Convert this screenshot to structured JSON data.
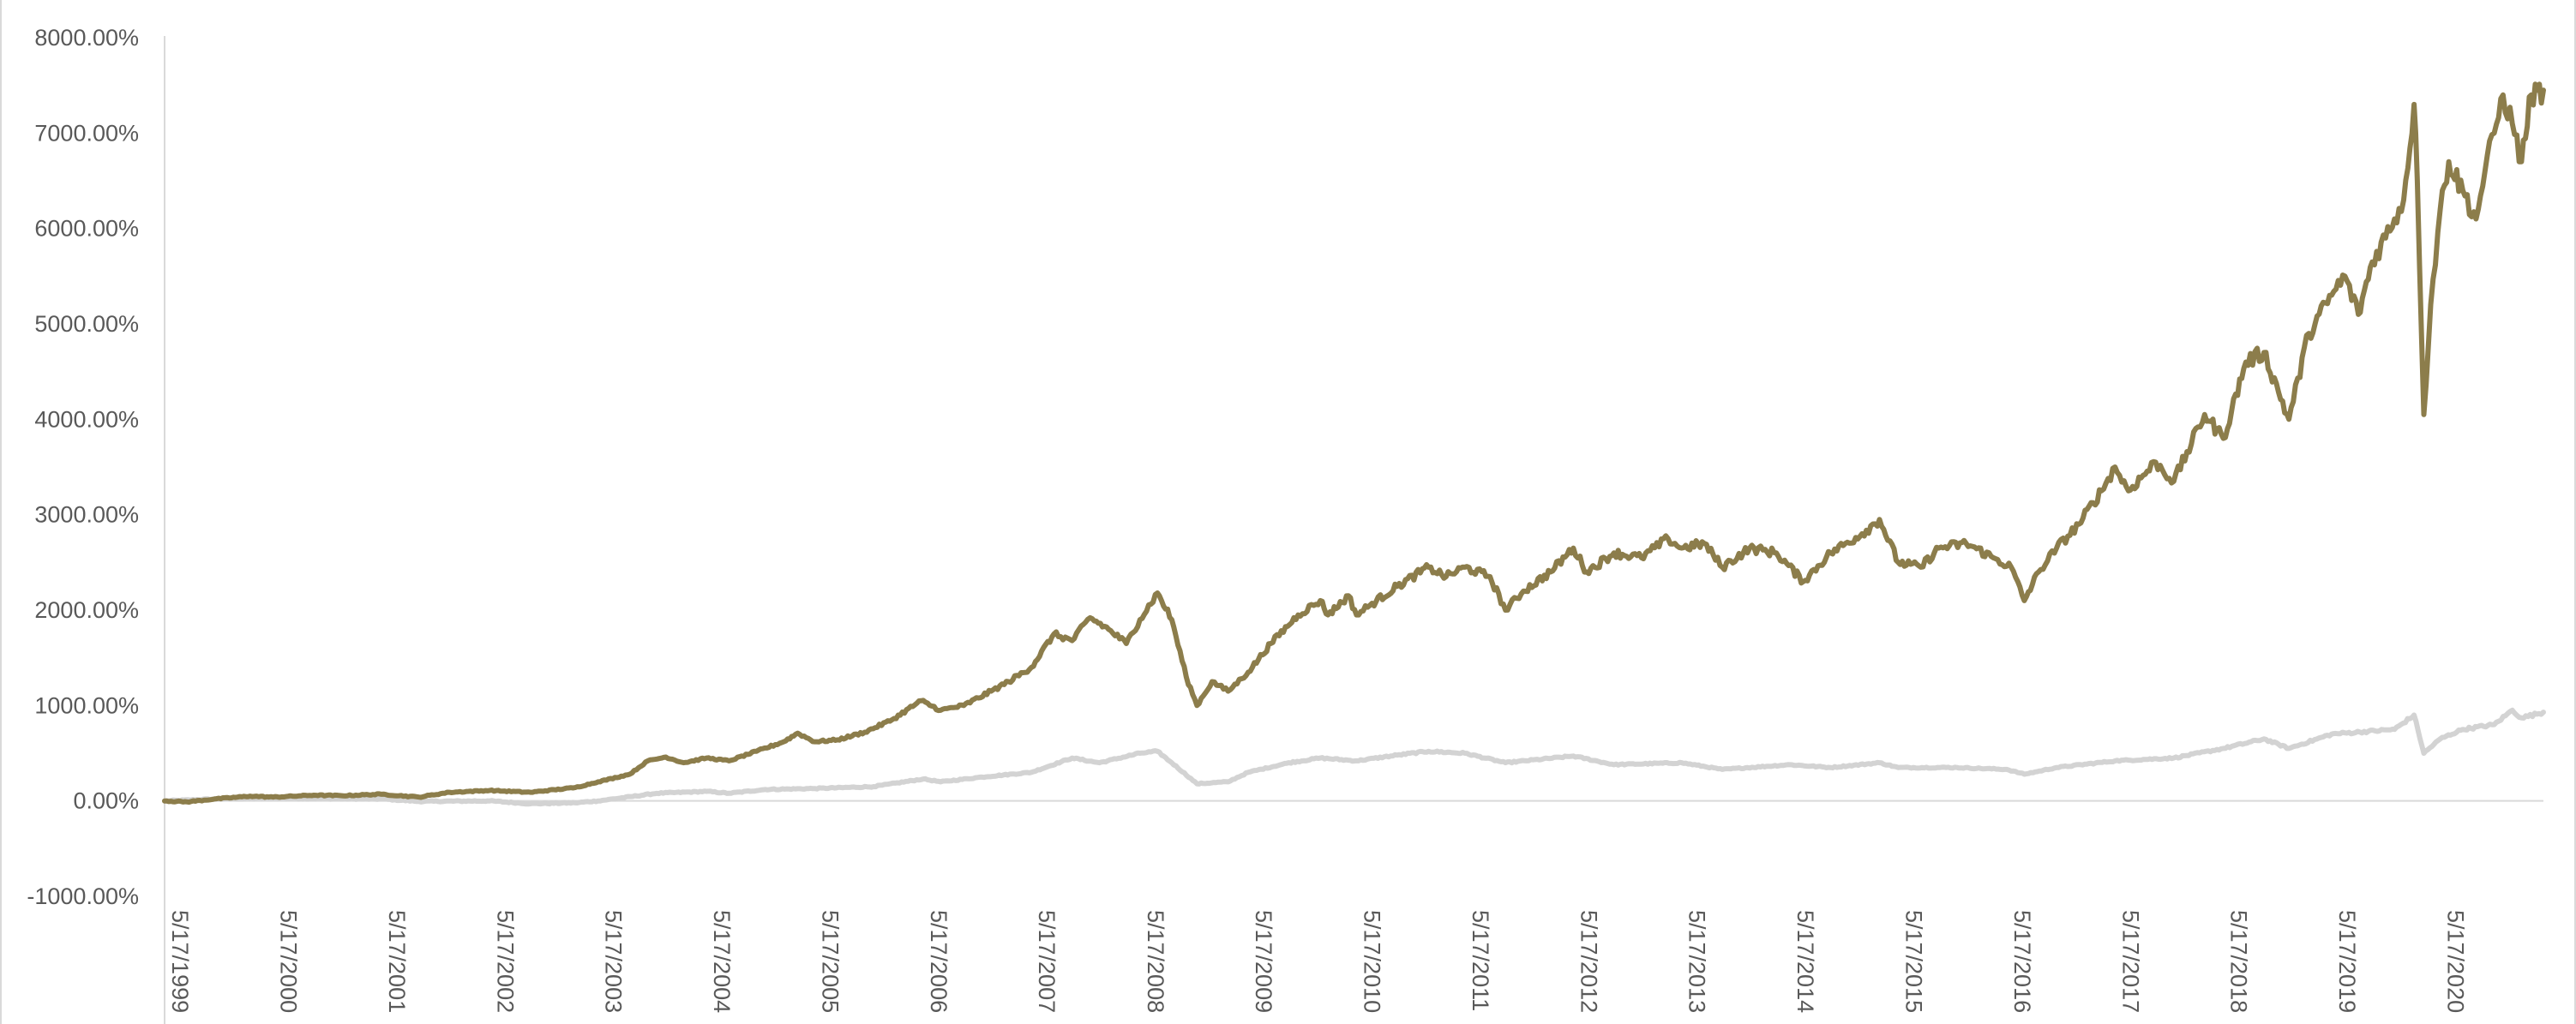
{
  "chart_data": {
    "type": "line",
    "title": "",
    "xlabel": "",
    "ylabel": "",
    "y_ticks": [
      "-1000.00%",
      "0.00%",
      "1000.00%",
      "2000.00%",
      "3000.00%",
      "4000.00%",
      "5000.00%",
      "6000.00%",
      "7000.00%",
      "8000.00%"
    ],
    "x_ticks": [
      "5/17/1999",
      "5/17/2000",
      "5/17/2001",
      "5/17/2002",
      "5/17/2003",
      "5/17/2004",
      "5/17/2005",
      "5/17/2006",
      "5/17/2007",
      "5/17/2008",
      "5/17/2009",
      "5/17/2010",
      "5/17/2011",
      "5/17/2012",
      "5/17/2013",
      "5/17/2014",
      "5/17/2015",
      "5/17/2016",
      "5/17/2017",
      "5/17/2018",
      "5/17/2019",
      "5/17/2020"
    ],
    "x_range": [
      "1999-05-17",
      "2021-04-30"
    ],
    "ylim": [
      -1000,
      8000
    ],
    "y_unit": "%",
    "grid": false,
    "legend": "none",
    "series": [
      {
        "color": "#8c7d4b",
        "points": [
          [
            "1999-05-17",
            0
          ],
          [
            "1999-08-01",
            -10
          ],
          [
            "1999-11-01",
            20
          ],
          [
            "2000-03-01",
            50
          ],
          [
            "2000-05-17",
            40
          ],
          [
            "2000-10-01",
            60
          ],
          [
            "2001-01-01",
            55
          ],
          [
            "2001-05-17",
            70
          ],
          [
            "2001-09-20",
            40
          ],
          [
            "2002-01-01",
            90
          ],
          [
            "2002-05-17",
            110
          ],
          [
            "2002-10-01",
            90
          ],
          [
            "2003-03-01",
            140
          ],
          [
            "2003-05-17",
            200
          ],
          [
            "2003-09-01",
            280
          ],
          [
            "2003-11-01",
            420
          ],
          [
            "2004-01-01",
            460
          ],
          [
            "2004-03-01",
            400
          ],
          [
            "2004-05-17",
            450
          ],
          [
            "2004-08-01",
            420
          ],
          [
            "2004-11-01",
            520
          ],
          [
            "2005-02-01",
            620
          ],
          [
            "2005-03-20",
            710
          ],
          [
            "2005-05-17",
            620
          ],
          [
            "2005-08-01",
            640
          ],
          [
            "2005-11-01",
            720
          ],
          [
            "2006-02-01",
            850
          ],
          [
            "2006-05-10",
            1050
          ],
          [
            "2006-07-15",
            950
          ],
          [
            "2006-10-01",
            1000
          ],
          [
            "2007-01-01",
            1150
          ],
          [
            "2007-03-01",
            1250
          ],
          [
            "2007-05-17",
            1400
          ],
          [
            "2007-08-01",
            1750
          ],
          [
            "2007-10-01",
            1680
          ],
          [
            "2007-12-01",
            1920
          ],
          [
            "2008-02-01",
            1800
          ],
          [
            "2008-04-01",
            1650
          ],
          [
            "2008-05-17",
            1900
          ],
          [
            "2008-07-15",
            2180
          ],
          [
            "2008-09-01",
            1900
          ],
          [
            "2008-10-20",
            1300
          ],
          [
            "2008-11-25",
            1000
          ],
          [
            "2009-01-15",
            1250
          ],
          [
            "2009-03-10",
            1150
          ],
          [
            "2009-05-17",
            1350
          ],
          [
            "2009-08-01",
            1650
          ],
          [
            "2009-11-01",
            1950
          ],
          [
            "2010-01-15",
            2100
          ],
          [
            "2010-02-10",
            1950
          ],
          [
            "2010-04-20",
            2150
          ],
          [
            "2010-05-17",
            1950
          ],
          [
            "2010-07-01",
            2050
          ],
          [
            "2010-10-01",
            2250
          ],
          [
            "2011-01-15",
            2450
          ],
          [
            "2011-03-15",
            2350
          ],
          [
            "2011-05-17",
            2450
          ],
          [
            "2011-08-10",
            2350
          ],
          [
            "2011-10-01",
            2000
          ],
          [
            "2011-12-01",
            2200
          ],
          [
            "2012-03-01",
            2400
          ],
          [
            "2012-05-17",
            2650
          ],
          [
            "2012-07-01",
            2400
          ],
          [
            "2012-10-01",
            2600
          ],
          [
            "2013-01-01",
            2550
          ],
          [
            "2013-04-01",
            2750
          ],
          [
            "2013-05-17",
            2650
          ],
          [
            "2013-08-01",
            2700
          ],
          [
            "2013-10-01",
            2450
          ],
          [
            "2014-01-01",
            2650
          ],
          [
            "2014-04-01",
            2600
          ],
          [
            "2014-07-01",
            2300
          ],
          [
            "2014-10-01",
            2600
          ],
          [
            "2015-01-15",
            2800
          ],
          [
            "2015-03-15",
            2950
          ],
          [
            "2015-05-17",
            2500
          ],
          [
            "2015-08-01",
            2450
          ],
          [
            "2015-10-01",
            2650
          ],
          [
            "2016-01-01",
            2700
          ],
          [
            "2016-04-01",
            2550
          ],
          [
            "2016-06-01",
            2450
          ],
          [
            "2016-07-15",
            2100
          ],
          [
            "2016-09-01",
            2400
          ],
          [
            "2016-11-01",
            2650
          ],
          [
            "2017-01-15",
            2900
          ],
          [
            "2017-04-01",
            3250
          ],
          [
            "2017-05-17",
            3500
          ],
          [
            "2017-07-01",
            3250
          ],
          [
            "2017-10-01",
            3550
          ],
          [
            "2017-12-01",
            3350
          ],
          [
            "2018-03-15",
            4050
          ],
          [
            "2018-05-17",
            3800
          ],
          [
            "2018-08-01",
            4600
          ],
          [
            "2018-10-01",
            4700
          ],
          [
            "2018-12-24",
            4000
          ],
          [
            "2019-03-01",
            4900
          ],
          [
            "2019-05-17",
            5300
          ],
          [
            "2019-07-01",
            5500
          ],
          [
            "2019-08-15",
            5100
          ],
          [
            "2019-10-01",
            5650
          ],
          [
            "2019-12-15",
            6100
          ],
          [
            "2020-01-15",
            6300
          ],
          [
            "2020-02-19",
            7300
          ],
          [
            "2020-03-01",
            6500
          ],
          [
            "2020-03-23",
            4050
          ],
          [
            "2020-04-15",
            5200
          ],
          [
            "2020-05-17",
            6200
          ],
          [
            "2020-06-15",
            6700
          ],
          [
            "2020-08-01",
            6400
          ],
          [
            "2020-09-15",
            6100
          ],
          [
            "2020-10-15",
            6600
          ],
          [
            "2020-11-15",
            7000
          ],
          [
            "2020-12-15",
            7400
          ],
          [
            "2021-01-15",
            7100
          ],
          [
            "2021-02-15",
            6700
          ],
          [
            "2021-03-20",
            7400
          ],
          [
            "2021-04-30",
            7450
          ]
        ]
      },
      {
        "color": "#d3d3d3",
        "points": [
          [
            "1999-05-17",
            0
          ],
          [
            "1999-11-01",
            20
          ],
          [
            "2000-05-17",
            30
          ],
          [
            "2001-05-17",
            20
          ],
          [
            "2001-09-20",
            -5
          ],
          [
            "2002-05-17",
            0
          ],
          [
            "2002-10-01",
            -30
          ],
          [
            "2003-03-01",
            -20
          ],
          [
            "2003-05-17",
            0
          ],
          [
            "2003-12-01",
            80
          ],
          [
            "2004-05-17",
            100
          ],
          [
            "2004-08-01",
            80
          ],
          [
            "2004-12-01",
            120
          ],
          [
            "2005-05-17",
            130
          ],
          [
            "2005-12-01",
            150
          ],
          [
            "2006-05-17",
            230
          ],
          [
            "2006-07-15",
            200
          ],
          [
            "2006-12-01",
            250
          ],
          [
            "2007-05-17",
            300
          ],
          [
            "2007-10-01",
            450
          ],
          [
            "2008-01-01",
            400
          ],
          [
            "2008-05-17",
            500
          ],
          [
            "2008-07-15",
            520
          ],
          [
            "2008-09-01",
            400
          ],
          [
            "2008-11-25",
            180
          ],
          [
            "2009-03-10",
            200
          ],
          [
            "2009-05-17",
            300
          ],
          [
            "2009-10-01",
            400
          ],
          [
            "2010-01-15",
            450
          ],
          [
            "2010-05-17",
            420
          ],
          [
            "2010-10-01",
            480
          ],
          [
            "2011-01-15",
            520
          ],
          [
            "2011-05-17",
            500
          ],
          [
            "2011-10-01",
            400
          ],
          [
            "2012-05-17",
            470
          ],
          [
            "2012-10-01",
            380
          ],
          [
            "2013-05-17",
            400
          ],
          [
            "2013-10-01",
            330
          ],
          [
            "2014-05-17",
            380
          ],
          [
            "2014-10-01",
            350
          ],
          [
            "2015-03-15",
            400
          ],
          [
            "2015-05-17",
            350
          ],
          [
            "2015-12-01",
            350
          ],
          [
            "2016-05-17",
            330
          ],
          [
            "2016-07-15",
            280
          ],
          [
            "2016-11-01",
            350
          ],
          [
            "2017-05-17",
            420
          ],
          [
            "2017-12-01",
            450
          ],
          [
            "2018-05-17",
            550
          ],
          [
            "2018-10-01",
            650
          ],
          [
            "2018-12-24",
            550
          ],
          [
            "2019-05-17",
            700
          ],
          [
            "2019-12-15",
            750
          ],
          [
            "2020-02-19",
            900
          ],
          [
            "2020-03-23",
            500
          ],
          [
            "2020-05-17",
            650
          ],
          [
            "2020-08-01",
            750
          ],
          [
            "2020-11-15",
            800
          ],
          [
            "2021-01-15",
            950
          ],
          [
            "2021-02-15",
            870
          ],
          [
            "2021-04-30",
            930
          ]
        ]
      }
    ]
  }
}
